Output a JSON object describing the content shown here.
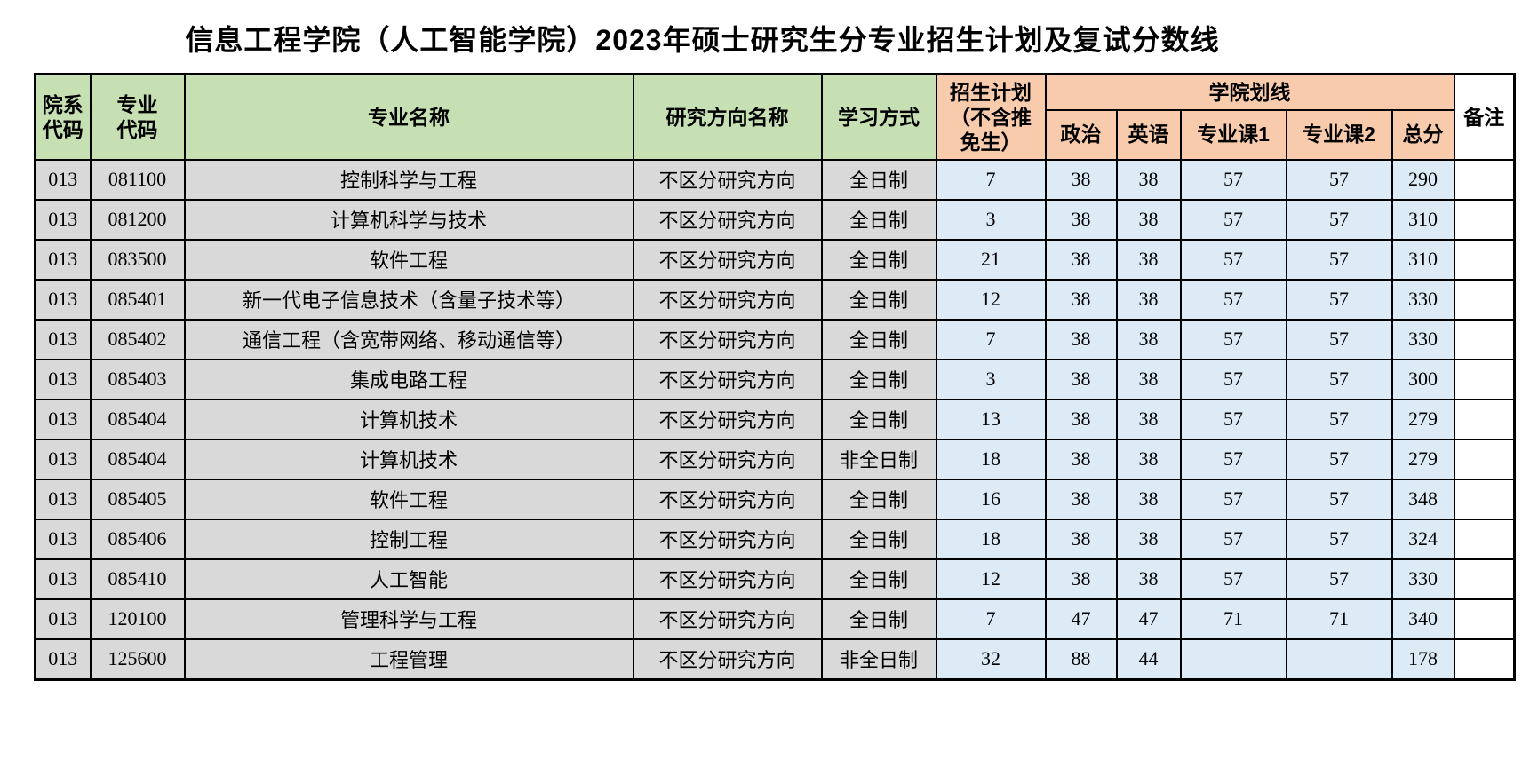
{
  "title": "信息工程学院（人工智能学院）2023年硕士研究生分专业招生计划及复试分数线",
  "table": {
    "column_keys": [
      "dept_code",
      "major_code",
      "major_name",
      "research_direction",
      "study_mode",
      "plan",
      "politics",
      "english",
      "course1",
      "course2",
      "total",
      "remarks"
    ],
    "headers": {
      "dept_code": "院系\n代码",
      "major_code": "专业\n代码",
      "major_name": "专业名称",
      "research_direction": "研究方向名称",
      "study_mode": "学习方式",
      "plan": "招生计划\n（不含推\n免生）",
      "school_line_group": "学院划线",
      "politics": "政治",
      "english": "英语",
      "course1": "专业课1",
      "course2": "专业课2",
      "total": "总分",
      "remarks": "备注"
    },
    "rows": [
      [
        "013",
        "081100",
        "控制科学与工程",
        "不区分研究方向",
        "全日制",
        "7",
        "38",
        "38",
        "57",
        "57",
        "290",
        ""
      ],
      [
        "013",
        "081200",
        "计算机科学与技术",
        "不区分研究方向",
        "全日制",
        "3",
        "38",
        "38",
        "57",
        "57",
        "310",
        ""
      ],
      [
        "013",
        "083500",
        "软件工程",
        "不区分研究方向",
        "全日制",
        "21",
        "38",
        "38",
        "57",
        "57",
        "310",
        ""
      ],
      [
        "013",
        "085401",
        "新一代电子信息技术（含量子技术等）",
        "不区分研究方向",
        "全日制",
        "12",
        "38",
        "38",
        "57",
        "57",
        "330",
        ""
      ],
      [
        "013",
        "085402",
        "通信工程（含宽带网络、移动通信等）",
        "不区分研究方向",
        "全日制",
        "7",
        "38",
        "38",
        "57",
        "57",
        "330",
        ""
      ],
      [
        "013",
        "085403",
        "集成电路工程",
        "不区分研究方向",
        "全日制",
        "3",
        "38",
        "38",
        "57",
        "57",
        "300",
        ""
      ],
      [
        "013",
        "085404",
        "计算机技术",
        "不区分研究方向",
        "全日制",
        "13",
        "38",
        "38",
        "57",
        "57",
        "279",
        ""
      ],
      [
        "013",
        "085404",
        "计算机技术",
        "不区分研究方向",
        "非全日制",
        "18",
        "38",
        "38",
        "57",
        "57",
        "279",
        ""
      ],
      [
        "013",
        "085405",
        "软件工程",
        "不区分研究方向",
        "全日制",
        "16",
        "38",
        "38",
        "57",
        "57",
        "348",
        ""
      ],
      [
        "013",
        "085406",
        "控制工程",
        "不区分研究方向",
        "全日制",
        "18",
        "38",
        "38",
        "57",
        "57",
        "324",
        ""
      ],
      [
        "013",
        "085410",
        "人工智能",
        "不区分研究方向",
        "全日制",
        "12",
        "38",
        "38",
        "57",
        "57",
        "330",
        ""
      ],
      [
        "013",
        "120100",
        "管理科学与工程",
        "不区分研究方向",
        "全日制",
        "7",
        "47",
        "47",
        "71",
        "71",
        "340",
        ""
      ],
      [
        "013",
        "125600",
        "工程管理",
        "不区分研究方向",
        "非全日制",
        "32",
        "88",
        "44",
        "",
        "",
        "178",
        ""
      ]
    ]
  },
  "colors": {
    "header_green": "#C6E0B4",
    "header_orange": "#F8CBAD",
    "cell_gray": "#D9D9D9",
    "cell_blue": "#DDEBF7",
    "cell_white": "#FFFFFF",
    "border": "#000000"
  }
}
